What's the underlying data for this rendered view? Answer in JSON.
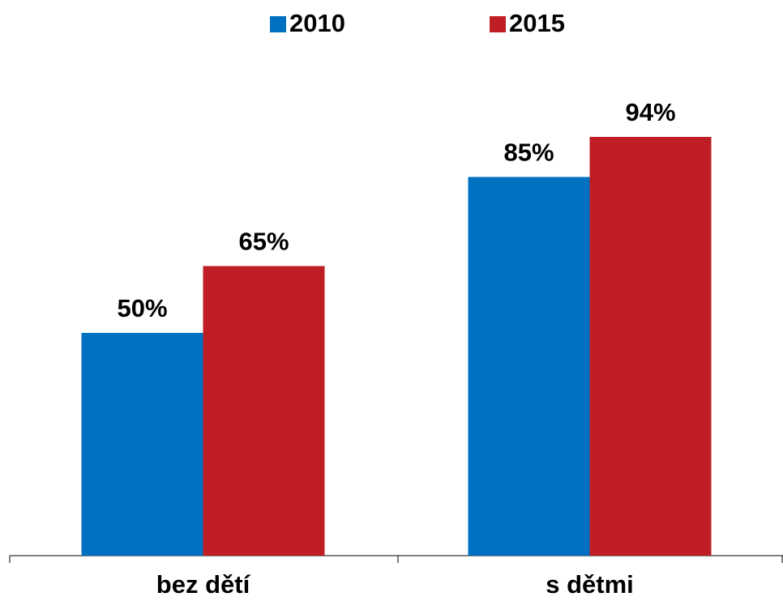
{
  "chart_data": {
    "type": "bar",
    "categories": [
      "bez dětí",
      "s dětmi"
    ],
    "series": [
      {
        "name": "2010",
        "color": "#0070c0",
        "values": [
          50,
          85
        ],
        "value_labels": [
          "50%",
          "85%"
        ]
      },
      {
        "name": "2015",
        "color": "#be1e24",
        "values": [
          65,
          94
        ],
        "value_labels": [
          "65%",
          "94%"
        ]
      }
    ],
    "ylim": [
      0,
      100
    ]
  }
}
